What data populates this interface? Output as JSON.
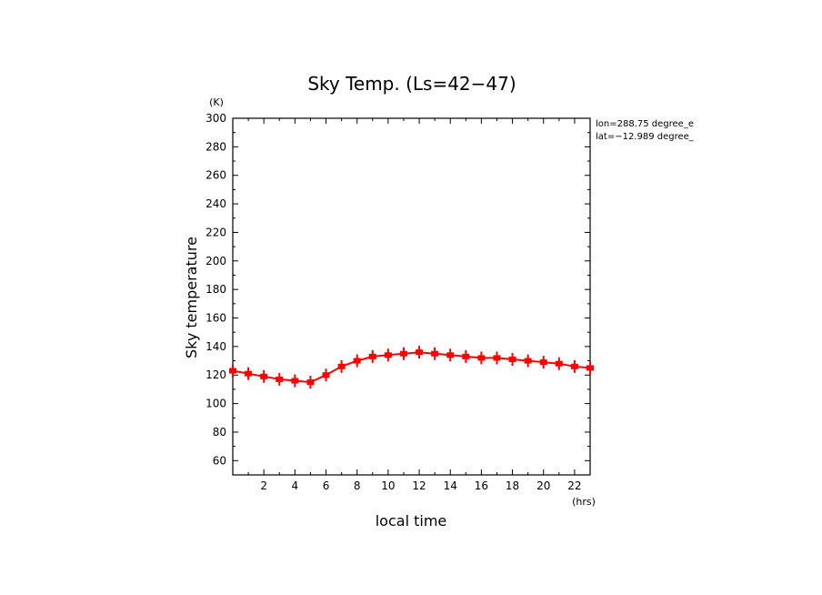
{
  "chart_data": {
    "type": "line",
    "title": "Sky Temp. (Ls=42−47)",
    "xlabel": "local time",
    "ylabel": "Sky temperature",
    "x_unit": "(hrs)",
    "y_unit": "(K)",
    "xlim": [
      0,
      23
    ],
    "ylim": [
      50,
      300
    ],
    "x_ticks": [
      2,
      4,
      6,
      8,
      10,
      12,
      14,
      16,
      18,
      20,
      22
    ],
    "y_ticks": [
      60,
      80,
      100,
      120,
      140,
      160,
      180,
      200,
      220,
      240,
      260,
      280,
      300
    ],
    "annotations": [
      "lon=288.75 degree_e",
      "lat=−12.989 degree_"
    ],
    "grid": false,
    "series": [
      {
        "color": "#ff0000",
        "x": [
          0,
          1,
          2,
          3,
          4,
          5,
          6,
          7,
          8,
          9,
          10,
          11,
          12,
          13,
          14,
          15,
          16,
          17,
          18,
          19,
          20,
          21,
          22,
          23
        ],
        "y": [
          123,
          121,
          119,
          117,
          116,
          115,
          120,
          126,
          130,
          133,
          134,
          135,
          136,
          135,
          134,
          133,
          132,
          132,
          131,
          130,
          129,
          128,
          126,
          125
        ]
      }
    ]
  }
}
